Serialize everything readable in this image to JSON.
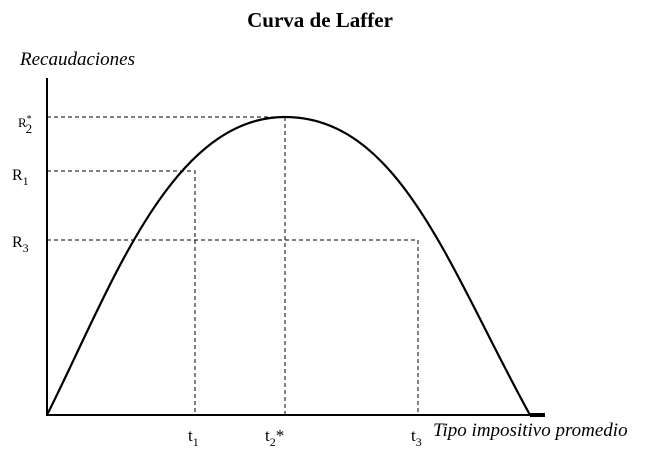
{
  "title": "Curva de Laffer",
  "y_axis": {
    "label": "Recaudaciones"
  },
  "x_axis": {
    "label": "Tipo impositivo promedio"
  },
  "y_levels": [
    {
      "base": "R",
      "sup": "*",
      "sub": "2"
    },
    {
      "base": "R",
      "sub": "1"
    },
    {
      "base": "R",
      "sub": "3"
    }
  ],
  "x_levels": [
    {
      "base": "t",
      "sub": "1"
    },
    {
      "base": "t",
      "sub": "2",
      "sup": "*"
    },
    {
      "base": "t",
      "sub": "3"
    }
  ]
}
